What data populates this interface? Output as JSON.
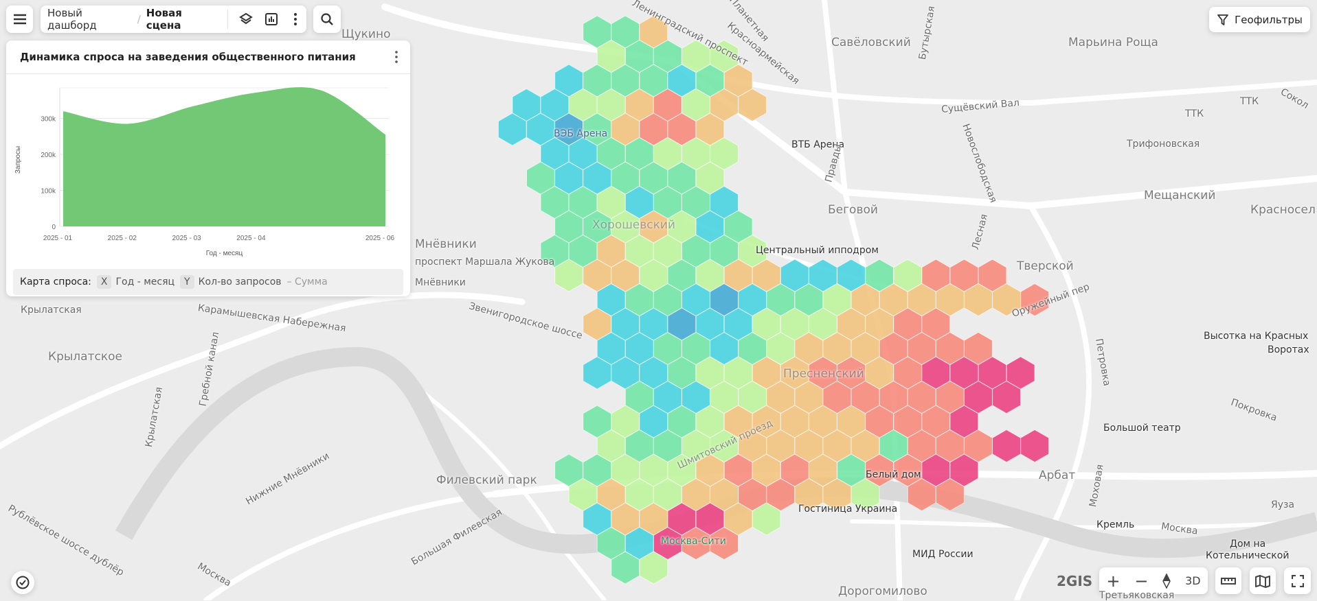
{
  "toolbar": {
    "breadcrumb_dashboard": "Новый дашборд",
    "breadcrumb_separator": "/",
    "breadcrumb_scene": "Новая сцена",
    "icons": [
      "menu-icon",
      "layers-icon",
      "chart-icon",
      "more-vertical-icon",
      "search-icon"
    ]
  },
  "geofilters": {
    "label": "Геофильтры",
    "icon": "filter-icon"
  },
  "panel": {
    "title": "Динамика спроса на заведения общественного питания",
    "footer": {
      "layer_label": "Карта спроса:",
      "x_key": "X",
      "x_value": "Год - месяц",
      "y_key": "Y",
      "y_value": "Кол-во запросов",
      "aggregation": "– Сумма"
    }
  },
  "chart_data": {
    "type": "area",
    "x": [
      "2025-01",
      "2025-02",
      "2025-03",
      "2025-04",
      "2025-05",
      "2025-06"
    ],
    "tick_labels": [
      "2025 - 01",
      "2025 - 02",
      "2025 - 03",
      "2025 - 04",
      "",
      "2025 - 06"
    ],
    "values": [
      320000,
      285000,
      333000,
      372000,
      378000,
      255000
    ],
    "xlabel": "Год - месяц",
    "ylabel": "Запросы",
    "yticks": [
      0,
      100000,
      200000,
      300000
    ],
    "ytick_labels": [
      "0",
      "100k",
      "200k",
      "300k"
    ],
    "ylim": [
      0,
      385000
    ],
    "grid": true,
    "color": "#73c876"
  },
  "map": {
    "hex_palette": [
      "#40a8d2",
      "#45d3e0",
      "#6fe6a4",
      "#bdf59c",
      "#f3c17c",
      "#f8877a",
      "#ea3f7f"
    ],
    "hex_rows": [
      "...335",
      "...43344",
      "..2333235",
      "224456455",
      "22135665",
      ".2233444",
      ".3223334",
      ".3342332",
      "..3345423",
      ".33544334",
      "..4554345522234666",
      "...2332123345555556",
      "...5221224445566",
      "...22332345556666",
      "...2223445566567777",
      "....32244556666677",
      "...34234555556667",
      "...4334455555366677",
      "..334445656536677",
      "..45445566554.66",
      "...2557754",
      "...32766",
      "....34"
    ],
    "labels": {
      "shchukino": "Щукино",
      "leningradsky": "Ленинградский проспект",
      "krasnoarmeyskaya": "Красноармейская",
      "planetnaya": "Планетная",
      "savelovsky": "Савёловский",
      "maryina_roshcha": "Марьина Роща",
      "butyrskaya": "Бутырская",
      "sushchevsky": "Сущёвский Вал",
      "ttk1": "ТТК",
      "ttk2": "ТТК",
      "sokol": "Сокол",
      "veb_arena": "ВЭБ Арена",
      "vtb_arena": "ВТБ Арена",
      "trifonovskaya": "Трифоновская",
      "pravdy": "Правды",
      "novoslobodskaya": "Новослободская",
      "begovoy": "Беговой",
      "meshchansky": "Мещанский",
      "krasnoselsky": "Красносел",
      "khoroshevsky": "Хорошевский",
      "hippodrome": "Центральный ипподром",
      "lesnaya": "Лесная",
      "tverskoy": "Тверской",
      "oruzheyny": "Оружейный пер",
      "mnevniki": "Мнёвники",
      "zhukova": "проспект Маршала Жукова",
      "mnevniki2": "Мнёвники",
      "zvenigorodskoe": "Звенигородское шоссе",
      "vysotka": "Высотка на Красных",
      "vysotka2": "Воротах",
      "krylatskaya": "Крылатская",
      "karamyshevskaya": "Карамышевская Набережная",
      "grebnoy": "Гребной канал",
      "krylatskoe": "Крылатское",
      "presnensky": "Пресненский",
      "petrovka": "Петровка",
      "bolshoy": "Большой театр",
      "pokrovka": "Покровка",
      "shmitovsky": "Шмитовский проезд",
      "bely_dom": "Белый дом",
      "arbat": "Арбат",
      "filevsky": "Филевский парк",
      "ukraina": "Гостиница Украина",
      "kreml": "Кремль",
      "moskva_city": "Москва-Сити",
      "moskva": "Москва",
      "yauza": "Яуза",
      "mid": "МИД России",
      "kotelnicheskaya": "Дом на",
      "kotelnicheskaya2": "Котельнической",
      "bolshaya_filevskaya": "Большая Филевская",
      "rublevskoe": "Рублёвское шоссе дублёр",
      "nizhnie_mnevniki": "Нижние Мнёвники",
      "dorogomilovo": "Дорогомилово",
      "tretyakovskaya": "Третьяковская",
      "mokhovaya": "Моховая",
      "krylatskaya2": "Крылатская",
      "moskva_river": "Москва"
    },
    "logo": "2GIS"
  },
  "map_controls": {
    "zoom_in": "+",
    "zoom_out": "−",
    "mode_3d": "3D"
  }
}
